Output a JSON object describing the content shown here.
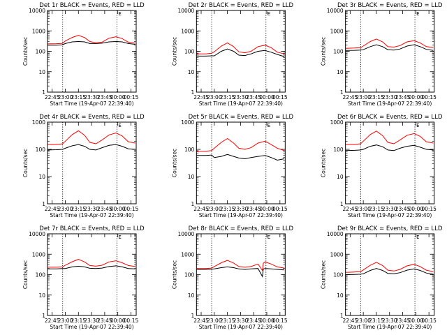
{
  "figure": {
    "panels_layout": "3x3 grid",
    "colors": {
      "events": "#000000",
      "lld": "#ff0000",
      "axes": "#000000",
      "background": "#ffffff"
    }
  },
  "chart_data": [
    {
      "type": "line",
      "title": "Det 1r BLACK = Events, RED = LLD",
      "xlabel": "Start Time (19-Apr-07 22:39:40)",
      "ylabel": "Counts/sec",
      "ylog": true,
      "ylim": [
        1,
        10000
      ],
      "ytick_values": [
        1,
        10,
        100,
        1000,
        10000
      ],
      "ytick_labels": [
        "1",
        "10",
        "100",
        "1000",
        "10000"
      ],
      "xlim": [
        "22:39:40",
        "00:21:00"
      ],
      "xtick_values": [
        "22:45",
        "23:00",
        "23:15",
        "23:30",
        "23:45",
        "00:00",
        "00:15"
      ],
      "xtick_labels": [
        "22:45",
        "23:00",
        "23:15",
        "23:30",
        "23:45",
        "00:00",
        "00:15"
      ],
      "vlines": [
        "22:57",
        "23:59"
      ],
      "corner_mark": "E",
      "x": [
        "22:40",
        "22:50",
        "22:57",
        "23:00",
        "23:08",
        "23:15",
        "23:22",
        "23:28",
        "23:35",
        "23:42",
        "23:50",
        "23:58",
        "00:05",
        "00:12",
        "00:20"
      ],
      "series": [
        {
          "name": "Events",
          "color": "#000000",
          "values": [
            200,
            200,
            210,
            240,
            290,
            300,
            290,
            240,
            240,
            250,
            290,
            300,
            290,
            240,
            220
          ]
        },
        {
          "name": "LLD",
          "color": "#ff0000",
          "values": [
            230,
            235,
            245,
            320,
            480,
            600,
            470,
            300,
            260,
            280,
            440,
            520,
            420,
            280,
            250
          ]
        }
      ]
    },
    {
      "type": "line",
      "title": "Det 2r BLACK = Events, RED = LLD",
      "xlabel": "Start Time (19-Apr-07 22:39:40)",
      "ylabel": "Counts/sec",
      "ylog": true,
      "ylim": [
        1,
        10000
      ],
      "ytick_values": [
        1,
        10,
        100,
        1000,
        10000
      ],
      "ytick_labels": [
        "1",
        "10",
        "100",
        "1000",
        "10000"
      ],
      "xlim": [
        "22:39:40",
        "00:21:00"
      ],
      "xtick_values": [
        "22:45",
        "23:00",
        "23:15",
        "23:30",
        "23:45",
        "00:00",
        "00:15"
      ],
      "xtick_labels": [
        "22:45",
        "23:00",
        "23:15",
        "23:30",
        "23:45",
        "00:00",
        "00:15"
      ],
      "vlines": [
        "22:57",
        "23:59"
      ],
      "corner_mark": "E",
      "x": [
        "22:40",
        "22:50",
        "22:57",
        "23:00",
        "23:08",
        "23:15",
        "23:22",
        "23:28",
        "23:35",
        "23:42",
        "23:50",
        "23:58",
        "00:05",
        "00:12",
        "00:20"
      ],
      "series": [
        {
          "name": "Events",
          "color": "#000000",
          "values": [
            58,
            58,
            60,
            60,
            100,
            130,
            100,
            65,
            62,
            75,
            100,
            110,
            90,
            70,
            55
          ]
        },
        {
          "name": "LLD",
          "color": "#ff0000",
          "values": [
            75,
            75,
            80,
            95,
            180,
            260,
            170,
            95,
            85,
            100,
            170,
            200,
            150,
            90,
            75
          ]
        }
      ]
    },
    {
      "type": "line",
      "title": "Det 3r BLACK = Events, RED = LLD",
      "xlabel": "Start Time (19-Apr-07 22:39:40)",
      "ylabel": "Counts/sec",
      "ylog": true,
      "ylim": [
        1,
        10000
      ],
      "ytick_values": [
        1,
        10,
        100,
        1000,
        10000
      ],
      "ytick_labels": [
        "1",
        "10",
        "100",
        "1000",
        "10000"
      ],
      "xlim": [
        "22:39:40",
        "00:21:00"
      ],
      "xtick_values": [
        "22:45",
        "23:00",
        "23:15",
        "23:30",
        "23:45",
        "00:00",
        "00:15"
      ],
      "xtick_labels": [
        "22:45",
        "23:00",
        "23:15",
        "23:30",
        "23:45",
        "00:00",
        "00:15"
      ],
      "vlines": [
        "22:57",
        "23:59"
      ],
      "corner_mark": "E",
      "x": [
        "22:40",
        "22:50",
        "22:57",
        "23:00",
        "23:08",
        "23:15",
        "23:22",
        "23:28",
        "23:35",
        "23:42",
        "23:50",
        "23:58",
        "00:05",
        "00:12",
        "00:20"
      ],
      "series": [
        {
          "name": "Events",
          "color": "#000000",
          "values": [
            110,
            112,
            115,
            120,
            170,
            210,
            170,
            120,
            115,
            130,
            180,
            210,
            170,
            125,
            110
          ]
        },
        {
          "name": "LLD",
          "color": "#ff0000",
          "values": [
            140,
            145,
            150,
            180,
            300,
            400,
            290,
            170,
            160,
            190,
            290,
            330,
            260,
            170,
            150
          ]
        }
      ]
    },
    {
      "type": "line",
      "title": "Det 4r BLACK = Events, RED = LLD",
      "xlabel": "Start Time (19-Apr-07 22:39:40)",
      "ylabel": "Counts/sec",
      "ylog": true,
      "ylim": [
        1,
        1000
      ],
      "ytick_values": [
        1,
        10,
        100,
        1000
      ],
      "ytick_labels": [
        "1",
        "10",
        "100",
        "1000"
      ],
      "xlim": [
        "22:39:40",
        "00:21:00"
      ],
      "xtick_values": [
        "22:45",
        "23:00",
        "23:15",
        "23:30",
        "23:45",
        "00:00",
        "00:15"
      ],
      "xtick_labels": [
        "22:45",
        "23:00",
        "23:15",
        "23:30",
        "23:45",
        "00:00",
        "00:15"
      ],
      "vlines": [
        "22:57",
        "23:59"
      ],
      "corner_mark": "E",
      "x": [
        "22:40",
        "22:50",
        "22:57",
        "23:00",
        "23:08",
        "23:15",
        "23:22",
        "23:28",
        "23:35",
        "23:42",
        "23:50",
        "23:58",
        "00:05",
        "00:12",
        "00:20"
      ],
      "series": [
        {
          "name": "Events",
          "color": "#000000",
          "values": [
            95,
            97,
            100,
            110,
            135,
            150,
            130,
            100,
            95,
            115,
            140,
            150,
            130,
            105,
            100
          ]
        },
        {
          "name": "LLD",
          "color": "#ff0000",
          "values": [
            150,
            150,
            160,
            200,
            350,
            480,
            330,
            180,
            160,
            220,
            340,
            400,
            310,
            190,
            170
          ]
        }
      ]
    },
    {
      "type": "line",
      "title": "Det 5r BLACK = Events, RED = LLD",
      "xlabel": "Start Time (19-Apr-07 22:39:40)",
      "ylabel": "Counts/sec",
      "ylog": true,
      "ylim": [
        1,
        1000
      ],
      "ytick_values": [
        1,
        10,
        100,
        1000
      ],
      "ytick_labels": [
        "1",
        "10",
        "100",
        "1000"
      ],
      "xlim": [
        "22:39:40",
        "00:21:00"
      ],
      "xtick_values": [
        "22:45",
        "23:00",
        "23:15",
        "23:30",
        "23:45",
        "00:00",
        "00:15"
      ],
      "xtick_labels": [
        "22:45",
        "23:00",
        "23:15",
        "23:30",
        "23:45",
        "00:00",
        "00:15"
      ],
      "vlines": [
        "22:57",
        "23:59"
      ],
      "corner_mark": "E",
      "x": [
        "22:40",
        "22:50",
        "22:57",
        "23:00",
        "23:08",
        "23:15",
        "23:22",
        "23:28",
        "23:35",
        "23:42",
        "23:50",
        "23:58",
        "00:05",
        "00:12",
        "00:20"
      ],
      "series": [
        {
          "name": "Events",
          "color": "#000000",
          "values": [
            60,
            60,
            62,
            50,
            55,
            65,
            55,
            48,
            45,
            50,
            55,
            60,
            50,
            40,
            45
          ]
        },
        {
          "name": "LLD",
          "color": "#ff0000",
          "values": [
            85,
            85,
            90,
            110,
            180,
            250,
            170,
            110,
            100,
            115,
            170,
            200,
            150,
            110,
            90
          ]
        }
      ]
    },
    {
      "type": "line",
      "title": "Det 6r BLACK = Events, RED = LLD",
      "xlabel": "Start Time (19-Apr-07 22:39:40)",
      "ylabel": "Counts/sec",
      "ylog": true,
      "ylim": [
        1,
        1000
      ],
      "ytick_values": [
        1,
        10,
        100,
        1000
      ],
      "ytick_labels": [
        "1",
        "10",
        "100",
        "1000"
      ],
      "xlim": [
        "22:39:40",
        "00:21:00"
      ],
      "xtick_values": [
        "22:45",
        "23:00",
        "23:15",
        "23:30",
        "23:45",
        "00:00",
        "00:15"
      ],
      "xtick_labels": [
        "22:45",
        "23:00",
        "23:15",
        "23:30",
        "23:45",
        "00:00",
        "00:15"
      ],
      "vlines": [
        "22:57",
        "23:59"
      ],
      "corner_mark": "E",
      "x": [
        "22:40",
        "22:50",
        "22:57",
        "23:00",
        "23:08",
        "23:15",
        "23:22",
        "23:28",
        "23:35",
        "23:42",
        "23:50",
        "23:58",
        "00:05",
        "00:12",
        "00:20"
      ],
      "series": [
        {
          "name": "Events",
          "color": "#000000",
          "values": [
            90,
            92,
            95,
            100,
            130,
            145,
            125,
            95,
            90,
            110,
            130,
            140,
            120,
            100,
            95
          ]
        },
        {
          "name": "LLD",
          "color": "#ff0000",
          "values": [
            150,
            150,
            160,
            200,
            350,
            470,
            320,
            180,
            160,
            220,
            330,
            380,
            300,
            190,
            170
          ]
        }
      ]
    },
    {
      "type": "line",
      "title": "Det 7r BLACK = Events, RED = LLD",
      "xlabel": "Start Time (19-Apr-07 22:39:40)",
      "ylabel": "Counts/sec",
      "ylog": true,
      "ylim": [
        1,
        10000
      ],
      "ytick_values": [
        1,
        10,
        100,
        1000,
        10000
      ],
      "ytick_labels": [
        "1",
        "10",
        "100",
        "1000",
        "10000"
      ],
      "xlim": [
        "22:39:40",
        "00:21:00"
      ],
      "xtick_values": [
        "22:45",
        "23:00",
        "23:15",
        "23:30",
        "23:45",
        "00:00",
        "00:15"
      ],
      "xtick_labels": [
        "22:45",
        "23:00",
        "23:15",
        "23:30",
        "23:45",
        "00:00",
        "00:15"
      ],
      "vlines": [
        "22:57",
        "23:59"
      ],
      "corner_mark": "E",
      "x": [
        "22:40",
        "22:50",
        "22:57",
        "23:00",
        "23:08",
        "23:15",
        "23:22",
        "23:28",
        "23:35",
        "23:42",
        "23:50",
        "23:58",
        "00:05",
        "00:12",
        "00:20"
      ],
      "series": [
        {
          "name": "Events",
          "color": "#000000",
          "values": [
            190,
            190,
            200,
            200,
            240,
            260,
            240,
            205,
            200,
            210,
            250,
            270,
            240,
            200,
            190
          ]
        },
        {
          "name": "LLD",
          "color": "#ff0000",
          "values": [
            230,
            230,
            240,
            290,
            430,
            560,
            420,
            280,
            260,
            290,
            420,
            480,
            380,
            280,
            250
          ]
        }
      ]
    },
    {
      "type": "line",
      "title": "Det 8r BLACK = Events, RED = LLD",
      "xlabel": "Start Time (19-Apr-07 22:39:40)",
      "ylabel": "Counts/sec",
      "ylog": true,
      "ylim": [
        1,
        10000
      ],
      "ytick_values": [
        1,
        10,
        100,
        1000,
        10000
      ],
      "ytick_labels": [
        "1",
        "10",
        "100",
        "1000",
        "10000"
      ],
      "xlim": [
        "22:39:40",
        "00:21:00"
      ],
      "xtick_values": [
        "22:45",
        "23:00",
        "23:15",
        "23:30",
        "23:45",
        "00:00",
        "00:15"
      ],
      "xtick_labels": [
        "22:45",
        "23:00",
        "23:15",
        "23:30",
        "23:45",
        "00:00",
        "00:15"
      ],
      "vlines": [
        "22:57",
        "23:59"
      ],
      "corner_mark": "E",
      "x": [
        "22:40",
        "22:50",
        "22:57",
        "23:00",
        "23:08",
        "23:15",
        "23:22",
        "23:28",
        "23:35",
        "23:42",
        "23:50",
        "23:55",
        "23:56",
        "23:58",
        "00:05",
        "00:12",
        "00:20"
      ],
      "series": [
        {
          "name": "Events",
          "color": "#000000",
          "values": [
            180,
            180,
            185,
            190,
            220,
            240,
            220,
            190,
            180,
            190,
            200,
            80,
            190,
            200,
            190,
            180,
            170
          ]
        },
        {
          "name": "LLD",
          "color": "#ff0000",
          "values": [
            200,
            200,
            210,
            250,
            380,
            500,
            370,
            250,
            230,
            250,
            330,
            160,
            360,
            420,
            330,
            240,
            210
          ]
        }
      ]
    },
    {
      "type": "line",
      "title": "Det 9r BLACK = Events, RED = LLD",
      "xlabel": "Start Time (19-Apr-07 22:39:40)",
      "ylabel": "Counts/sec",
      "ylog": true,
      "ylim": [
        1,
        10000
      ],
      "ytick_values": [
        1,
        10,
        100,
        1000,
        10000
      ],
      "ytick_labels": [
        "1",
        "10",
        "100",
        "1000",
        "10000"
      ],
      "xlim": [
        "22:39:40",
        "00:21:00"
      ],
      "xtick_values": [
        "22:45",
        "23:00",
        "23:15",
        "23:30",
        "23:45",
        "00:00",
        "00:15"
      ],
      "xtick_labels": [
        "22:45",
        "23:00",
        "23:15",
        "23:30",
        "23:45",
        "00:00",
        "00:15"
      ],
      "vlines": [
        "22:57",
        "23:59"
      ],
      "corner_mark": "E",
      "x": [
        "22:40",
        "22:50",
        "22:57",
        "23:00",
        "23:08",
        "23:15",
        "23:22",
        "23:28",
        "23:35",
        "23:42",
        "23:50",
        "23:58",
        "00:05",
        "00:12",
        "00:20"
      ],
      "series": [
        {
          "name": "Events",
          "color": "#000000",
          "values": [
            100,
            102,
            105,
            110,
            160,
            200,
            160,
            115,
            110,
            125,
            165,
            190,
            160,
            120,
            105
          ]
        },
        {
          "name": "LLD",
          "color": "#ff0000",
          "values": [
            130,
            135,
            140,
            170,
            290,
            400,
            280,
            165,
            150,
            180,
            270,
            320,
            250,
            165,
            140
          ]
        }
      ]
    }
  ]
}
